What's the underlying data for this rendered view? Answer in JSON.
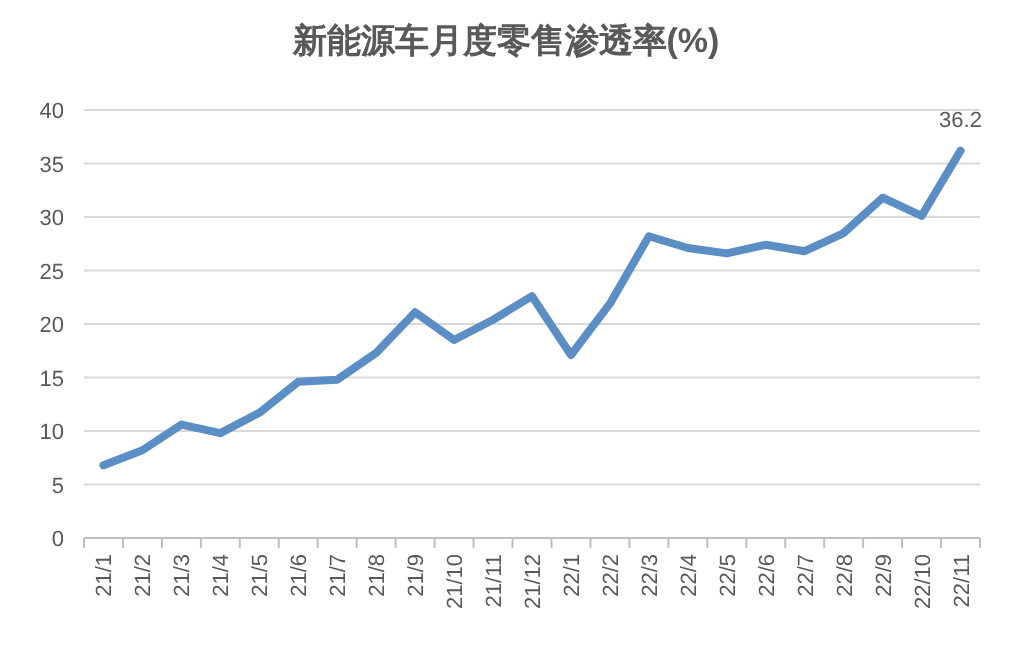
{
  "chart_data": {
    "type": "line",
    "title": "新能源车月度零售渗透率(%)",
    "categories": [
      "21/1",
      "21/2",
      "21/3",
      "21/4",
      "21/5",
      "21/6",
      "21/7",
      "21/8",
      "21/9",
      "21/10",
      "21/11",
      "21/12",
      "22/1",
      "22/2",
      "22/3",
      "22/4",
      "22/5",
      "22/6",
      "22/7",
      "22/8",
      "22/9",
      "22/10",
      "22/11"
    ],
    "series": [
      {
        "color": "#5b8ec4",
        "values": [
          6.8,
          8.2,
          10.6,
          9.8,
          11.7,
          14.6,
          14.8,
          17.3,
          21.1,
          18.5,
          20.4,
          22.6,
          17.1,
          21.9,
          28.2,
          27.1,
          26.6,
          27.4,
          26.8,
          28.5,
          31.8,
          30.1,
          36.2
        ],
        "value_labels": [
          null,
          null,
          null,
          null,
          null,
          null,
          null,
          null,
          null,
          null,
          null,
          null,
          null,
          null,
          null,
          null,
          null,
          null,
          null,
          null,
          null,
          null,
          "36.2"
        ]
      }
    ],
    "ylim": [
      0,
      40
    ],
    "yticks": [
      0,
      5,
      10,
      15,
      20,
      25,
      30,
      35,
      40
    ],
    "grid": "y"
  }
}
